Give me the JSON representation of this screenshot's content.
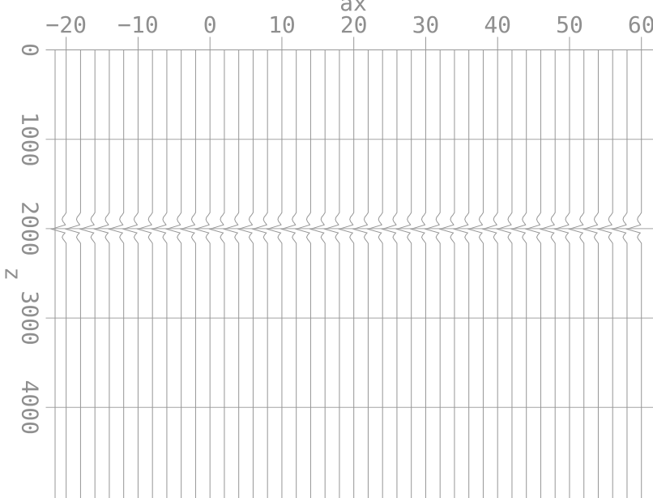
{
  "chart_data": {
    "type": "line",
    "subtype": "seismic-wiggle-section",
    "title": "ax",
    "xlabel": "ax",
    "ylabel": "z",
    "x_ticks": [
      -20,
      -10,
      0,
      10,
      20,
      30,
      40,
      50,
      60
    ],
    "x_tick_labels": [
      "−20",
      "−10",
      "0",
      "10",
      "20",
      "30",
      "40",
      "50",
      "60"
    ],
    "y_ticks": [
      0,
      1000,
      2000,
      3000,
      4000
    ],
    "y_tick_labels": [
      "0",
      "1000",
      "2000",
      "3000",
      "4000"
    ],
    "xlim": [
      -21.54,
      61.61
    ],
    "ylim": [
      0,
      5014
    ],
    "grid": "horizontal gridlines at each labeled y tick, spanning full plot width; no vertical gridlines",
    "legend": "none",
    "trace_count": 41,
    "trace_spacing_units": 2,
    "trace_x_positions": [
      -20,
      -18,
      -16,
      -14,
      -12,
      -10,
      -8,
      -6,
      -4,
      -2,
      0,
      2,
      4,
      6,
      8,
      10,
      12,
      14,
      16,
      18,
      20,
      22,
      24,
      26,
      28,
      30,
      32,
      34,
      36,
      38,
      40,
      42,
      44,
      46,
      48,
      50,
      52,
      54,
      56,
      58,
      60
    ],
    "event": {
      "description": "flat reflection event near z=2000; every trace deflects left with a rounded small lobe, a sharp large spike, then a rounded small lobe",
      "center_z": 2000,
      "wavelet_points_z_amp": [
        [
          1820,
          0
        ],
        [
          1848,
          -0.22
        ],
        [
          1872,
          -0.47
        ],
        [
          1897,
          -0.56
        ],
        [
          1921,
          -0.45
        ],
        [
          1944,
          -0.22
        ],
        [
          1958,
          -0.11
        ],
        [
          2005,
          -2.03
        ],
        [
          2048,
          -0.16
        ],
        [
          2072,
          -0.42
        ],
        [
          2096,
          -0.56
        ],
        [
          2119,
          -0.42
        ],
        [
          2143,
          -0.18
        ],
        [
          2164,
          0
        ]
      ],
      "amplitude_units": "x-axis units, negative = deflection toward smaller x"
    },
    "colors": {
      "background": "#ffffff",
      "line": "#979797",
      "gridline": "#a3a3a3",
      "text": "#8f8f8f"
    }
  }
}
